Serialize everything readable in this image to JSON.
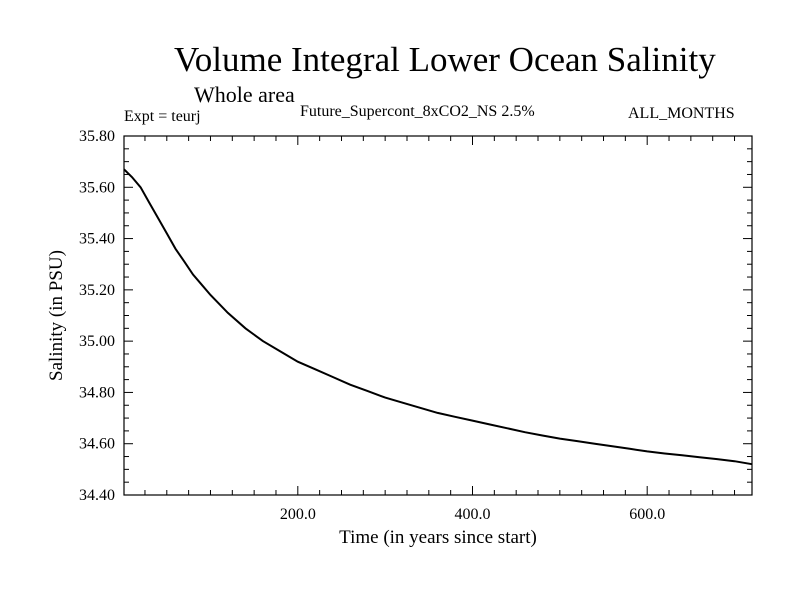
{
  "chart_data": {
    "type": "line",
    "title": "Volume Integral Lower Ocean Salinity",
    "subtitle": "Whole area",
    "left_label": "Expt = teurj",
    "center_label": "Future_Supercont_8xCO2_NS 2.5%",
    "right_label": "ALL_MONTHS",
    "xlabel": "Time (in years since start)",
    "ylabel": "Salinity (in PSU)",
    "xlim": [
      1,
      720
    ],
    "ylim": [
      34.4,
      35.8
    ],
    "x_ticks": [
      200,
      400,
      600
    ],
    "x_tick_labels": [
      "200.0",
      "400.0",
      "600.0"
    ],
    "y_ticks": [
      34.4,
      34.6,
      34.8,
      35.0,
      35.2,
      35.4,
      35.6,
      35.8
    ],
    "y_tick_labels": [
      "34.40",
      "34.60",
      "34.80",
      "35.00",
      "35.20",
      "35.40",
      "35.60",
      "35.80"
    ],
    "grid": false,
    "line_color": "#000000",
    "series": [
      {
        "x": [
          1,
          10,
          20,
          30,
          40,
          50,
          60,
          70,
          80,
          90,
          100,
          120,
          140,
          160,
          180,
          200,
          220,
          240,
          260,
          280,
          300,
          320,
          340,
          360,
          380,
          400,
          420,
          440,
          460,
          480,
          500,
          520,
          540,
          560,
          580,
          600,
          620,
          640,
          660,
          680,
          700,
          720
        ],
        "y": [
          35.67,
          35.64,
          35.6,
          35.54,
          35.48,
          35.42,
          35.36,
          35.31,
          35.26,
          35.22,
          35.18,
          35.11,
          35.05,
          35.0,
          34.96,
          34.92,
          34.89,
          34.86,
          34.83,
          34.805,
          34.78,
          34.76,
          34.74,
          34.72,
          34.705,
          34.69,
          34.675,
          34.66,
          34.645,
          34.632,
          34.62,
          34.61,
          34.6,
          34.59,
          34.58,
          34.57,
          34.562,
          34.555,
          34.547,
          34.54,
          34.532,
          34.52
        ]
      }
    ]
  }
}
